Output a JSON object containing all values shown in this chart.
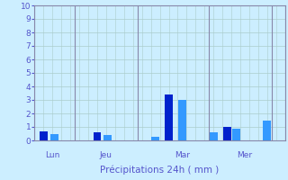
{
  "xlabel": "Précipitations 24h ( mm )",
  "ylim": [
    0,
    10
  ],
  "yticks": [
    0,
    1,
    2,
    3,
    4,
    5,
    6,
    7,
    8,
    9,
    10
  ],
  "background_color": "#cceeff",
  "grid_color": "#aacccc",
  "xlabel_color": "#5555cc",
  "tick_color": "#5555cc",
  "sep_color": "#8888aa",
  "day_labels": [
    {
      "label": "Lun",
      "x": 2.0
    },
    {
      "label": "Jeu",
      "x": 8.0
    },
    {
      "label": "Mar",
      "x": 16.5
    },
    {
      "label": "Mer",
      "x": 23.5
    }
  ],
  "day_line_positions": [
    0,
    4.5,
    11.5,
    19.5,
    26.5,
    28
  ],
  "bars": [
    {
      "x": 1.0,
      "height": 0.7,
      "color": "#0022cc"
    },
    {
      "x": 2.2,
      "height": 0.5,
      "color": "#3399ff"
    },
    {
      "x": 7.0,
      "height": 0.6,
      "color": "#0022cc"
    },
    {
      "x": 8.2,
      "height": 0.4,
      "color": "#3399ff"
    },
    {
      "x": 13.5,
      "height": 0.3,
      "color": "#3399ff"
    },
    {
      "x": 15.0,
      "height": 3.4,
      "color": "#0022cc"
    },
    {
      "x": 16.5,
      "height": 3.0,
      "color": "#3399ff"
    },
    {
      "x": 20.0,
      "height": 0.6,
      "color": "#3399ff"
    },
    {
      "x": 21.5,
      "height": 1.0,
      "color": "#0022cc"
    },
    {
      "x": 22.5,
      "height": 0.9,
      "color": "#3399ff"
    },
    {
      "x": 26.0,
      "height": 1.5,
      "color": "#3399ff"
    }
  ],
  "bar_width": 0.9,
  "xlim": [
    0,
    28
  ],
  "figsize": [
    3.2,
    2.0
  ],
  "dpi": 100
}
